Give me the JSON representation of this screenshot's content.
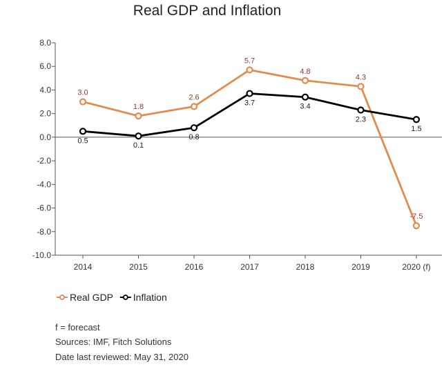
{
  "chart_data": {
    "type": "line",
    "title": "Real GDP and Inflation",
    "categories": [
      "2014",
      "2015",
      "2016",
      "2017",
      "2018",
      "2019",
      "2020 (f)"
    ],
    "series": [
      {
        "name": "Real GDP",
        "values": [
          3.0,
          1.8,
          2.6,
          5.7,
          4.8,
          4.3,
          -7.5
        ],
        "labels": [
          "3.0",
          "1.8",
          "2.6",
          "5.7",
          "4.8",
          "4.3",
          "-7.5"
        ],
        "label_position": "above"
      },
      {
        "name": "Inflation",
        "values": [
          0.5,
          0.1,
          0.8,
          3.7,
          3.4,
          2.3,
          1.5
        ],
        "labels": [
          "0.5",
          "0.1",
          "0.8",
          "3.7",
          "3.4",
          "2.3",
          "1.5"
        ],
        "label_position": "below"
      }
    ],
    "ylim": [
      -10,
      8
    ],
    "yticks": [
      "8.0",
      "6.0",
      "4.0",
      "2.0",
      "0.0",
      "-2.0",
      "-4.0",
      "-6.0",
      "-8.0",
      "-10.0"
    ],
    "ytick_values": [
      8,
      6,
      4,
      2,
      0,
      -2,
      -4,
      -6,
      -8,
      -10
    ],
    "xlabel": "",
    "ylabel": "",
    "grid": false,
    "legend_position": "bottom-left"
  },
  "colors": {
    "gdp": "#E38B4E",
    "gdp_label": "#8B3A3A",
    "inflation": "#000000",
    "inflation_label": "#222222",
    "axis": "#555555"
  },
  "notes": {
    "forecast": "f = forecast",
    "sources": "Sources: IMF, Fitch Solutions",
    "reviewed": "Date last reviewed: May 31, 2020"
  }
}
